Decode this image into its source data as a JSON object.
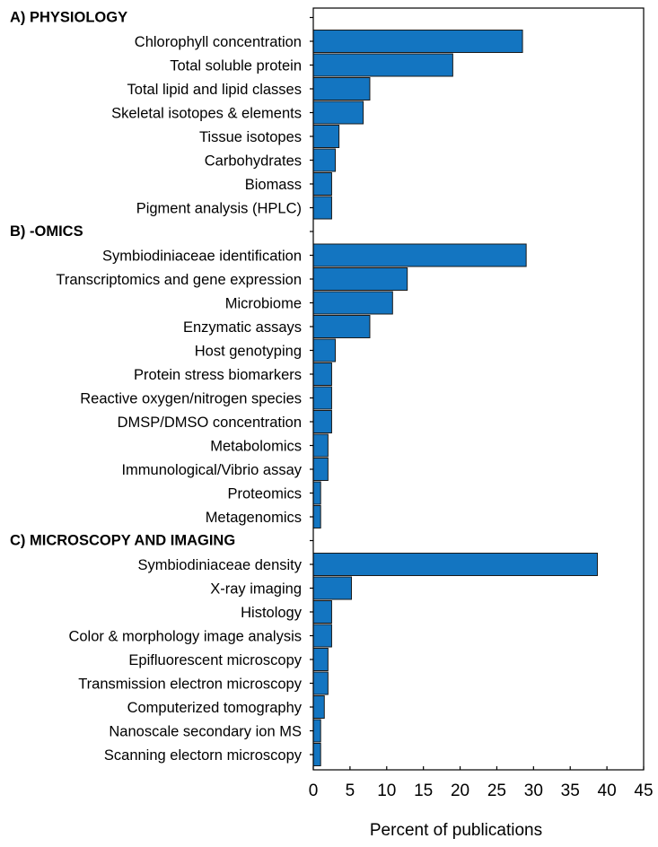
{
  "chart_data": {
    "type": "bar",
    "orientation": "horizontal",
    "xlabel": "Percent of publications",
    "xlim": [
      0,
      45
    ],
    "xticks": [
      0,
      5,
      10,
      15,
      20,
      25,
      30,
      35,
      40,
      45
    ],
    "grid": false,
    "legend": "none",
    "bar_color": "#1375c1",
    "bar_edge_color": "#1a1a1a",
    "groups": [
      {
        "title": "A) PHYSIOLOGY",
        "categories": [
          "Chlorophyll concentration",
          "Total soluble protein",
          "Total lipid and lipid classes",
          "Skeletal isotopes & elements",
          "Tissue isotopes",
          "Carbohydrates",
          "Biomass",
          "Pigment analysis (HPLC)"
        ],
        "values": [
          28.5,
          19,
          7.7,
          6.8,
          3.5,
          3,
          2.5,
          2.5
        ]
      },
      {
        "title": "B) -OMICS",
        "categories": [
          "Symbiodiniaceae identification",
          "Transcriptomics and gene expression",
          "Microbiome",
          "Enzymatic assays",
          "Host genotyping",
          "Protein stress biomarkers",
          "Reactive oxygen/nitrogen species",
          "DMSP/DMSO concentration",
          "Metabolomics",
          "Immunological/Vibrio assay",
          "Proteomics",
          "Metagenomics"
        ],
        "values": [
          29,
          12.8,
          10.8,
          7.7,
          3,
          2.5,
          2.5,
          2.5,
          2,
          2,
          1,
          1
        ]
      },
      {
        "title": "C) MICROSCOPY AND IMAGING",
        "categories": [
          "Symbiodiniaceae density",
          "X-ray imaging",
          "Histology",
          "Color & morphology image analysis",
          "Epifluorescent microscopy",
          "Transmission electron microscopy",
          "Computerized tomography",
          "Nanoscale secondary ion MS",
          "Scanning electorn microscopy"
        ],
        "values": [
          38.7,
          5.2,
          2.5,
          2.5,
          2,
          2,
          1.5,
          1,
          1
        ]
      }
    ]
  }
}
